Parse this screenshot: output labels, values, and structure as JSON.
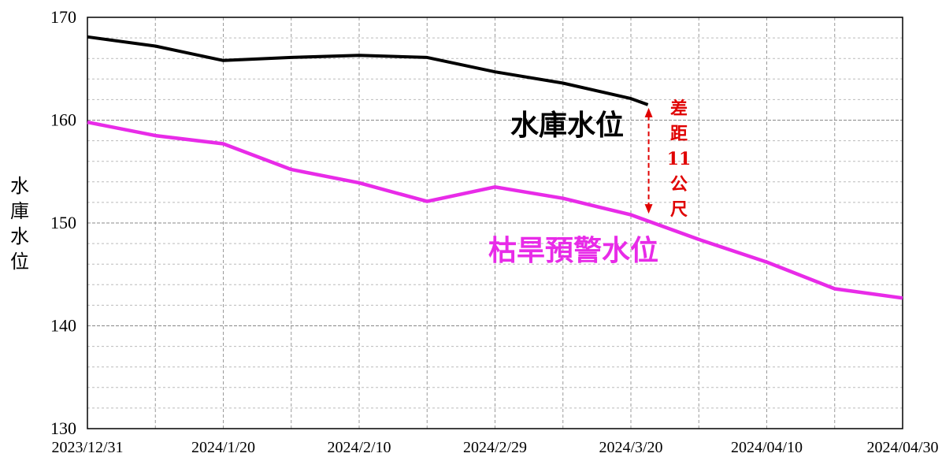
{
  "chart_data": {
    "type": "line",
    "ylabel": "水庫水位",
    "ylim": [
      130,
      170
    ],
    "yticks": [
      130,
      140,
      150,
      160,
      170
    ],
    "x_tick_labels": [
      "2023/12/31",
      "2024/1/20",
      "2024/2/10",
      "2024/2/29",
      "2024/3/20",
      "2024/04/10",
      "2024/04/30"
    ],
    "grid": true,
    "series": [
      {
        "name": "水庫水位",
        "color": "#000000",
        "x": [
          0,
          1,
          2,
          3,
          4,
          5,
          6,
          7,
          8,
          8.25
        ],
        "values": [
          168.1,
          167.2,
          165.8,
          166.1,
          166.3,
          166.1,
          164.7,
          163.6,
          162.1,
          161.5
        ]
      },
      {
        "name": "枯旱預警水位",
        "color": "#e82be8",
        "x": [
          0,
          1,
          2,
          3,
          4,
          5,
          6,
          7,
          8,
          9,
          10,
          11,
          12
        ],
        "values": [
          159.8,
          158.5,
          157.7,
          155.2,
          153.9,
          152.1,
          153.5,
          152.4,
          150.8,
          148.4,
          146.2,
          143.6,
          142.7
        ]
      }
    ],
    "annotation": {
      "chars": [
        "差",
        "距",
        "11",
        "公",
        "尺"
      ],
      "color": "#e00000",
      "x": 8.25,
      "y_top": 161.5,
      "y_bottom": 150.6
    }
  }
}
